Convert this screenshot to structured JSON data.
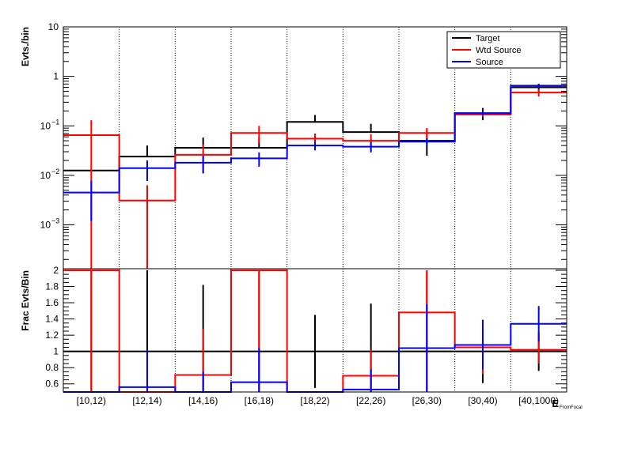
{
  "chart_data": [
    {
      "type": "histogram",
      "panel": "top",
      "ylabel": "Evts./bin",
      "yscale": "log",
      "ylim": [
        0.00013,
        10
      ],
      "categories": [
        "[10,12)",
        "[12,14)",
        "[14,16)",
        "[16,18)",
        "[18,22)",
        "[22,26)",
        "[26,30)",
        "[30,40)",
        "[40,1000)"
      ],
      "ytick_labels": [
        {
          "value": 10,
          "label": "10"
        },
        {
          "value": 1,
          "label": "1"
        },
        {
          "value": 0.1,
          "label": "10",
          "exp": "−1"
        },
        {
          "value": 0.01,
          "label": "10",
          "exp": "−2"
        },
        {
          "value": 0.001,
          "label": "10",
          "exp": "−3"
        }
      ],
      "legend": {
        "placement": "top-right"
      },
      "series": [
        {
          "name": "Target",
          "color": "#000000",
          "values": [
            0.0125,
            0.024,
            0.036,
            0.036,
            0.12,
            0.075,
            0.05,
            0.18,
            0.6
          ],
          "err_low": [
            0.0125,
            0.024,
            0.036,
            0.036,
            0.12,
            0.075,
            0.025,
            0.13,
            0.45
          ],
          "err_high": [
            0.0125,
            0.04,
            0.058,
            0.058,
            0.165,
            0.11,
            0.085,
            0.23,
            0.7
          ]
        },
        {
          "name": "Wtd Source",
          "color": "#ff0000",
          "values": [
            0.065,
            0.0031,
            0.026,
            0.072,
            0.055,
            0.05,
            0.072,
            0.17,
            0.47
          ],
          "err_low": [
            0.0,
            0.0,
            0.011,
            0.044,
            0.039,
            0.032,
            0.055,
            0.15,
            0.39
          ],
          "err_high": [
            0.13,
            0.0063,
            0.042,
            0.1,
            0.07,
            0.068,
            0.09,
            0.2,
            0.55
          ]
        },
        {
          "name": "Source",
          "color": "#0000ff",
          "values": [
            0.0045,
            0.014,
            0.018,
            0.022,
            0.04,
            0.038,
            0.048,
            0.18,
            0.65
          ],
          "err_low": [
            0.0012,
            0.0077,
            0.011,
            0.015,
            0.032,
            0.029,
            0.04,
            0.16,
            0.59
          ],
          "err_high": [
            0.0078,
            0.02,
            0.025,
            0.029,
            0.048,
            0.047,
            0.056,
            0.2,
            0.71
          ]
        }
      ]
    },
    {
      "type": "histogram",
      "panel": "bottom",
      "ylabel": "Frac Evts/Bin",
      "xlabel": "E",
      "xlabel_sub": "FromFocal",
      "ylim": [
        0.5,
        2
      ],
      "yticks": [
        0.6,
        0.8,
        1,
        1.2,
        1.4,
        1.6,
        1.8,
        2
      ],
      "ytick_labels": [
        "0.6",
        "0.8",
        "1",
        "1.2",
        "1.4",
        "1.6",
        "1.8",
        "2"
      ],
      "categories": [
        "[10,12)",
        "[12,14)",
        "[14,16)",
        "[16,18)",
        "[18,22)",
        "[22,26)",
        "[26,30)",
        "[30,40)",
        "[40,1000)"
      ],
      "series": [
        {
          "name": "Target",
          "color": "#000000",
          "values": [
            1,
            1,
            1,
            1,
            1,
            1,
            1,
            1,
            1
          ],
          "err_low": [
            0.5,
            0.5,
            0.5,
            0.5,
            0.55,
            0.5,
            0.5,
            0.61,
            0.76
          ],
          "err_high": [
            2,
            2,
            1.82,
            2,
            1.45,
            1.59,
            2,
            1.39,
            1.24
          ]
        },
        {
          "name": "Wtd Source",
          "color": "#ff0000",
          "values": [
            2,
            0.5,
            0.71,
            2,
            0.5,
            0.7,
            1.48,
            1.05,
            1.02
          ],
          "err_low": [
            0.5,
            0.5,
            0.5,
            0.5,
            0.5,
            0.5,
            0.5,
            0.72,
            0.85
          ],
          "err_high": [
            2,
            0.5,
            1.28,
            2,
            0.5,
            1.02,
            2,
            1.38,
            1.2
          ]
        },
        {
          "name": "Source",
          "color": "#0000ff",
          "values": [
            0.5,
            0.56,
            0.5,
            0.62,
            0.5,
            0.53,
            1.04,
            1.08,
            1.34
          ],
          "err_low": [
            0.5,
            0.5,
            0.5,
            0.5,
            0.5,
            0.5,
            0.5,
            0.78,
            1.12
          ],
          "err_high": [
            0.5,
            1.02,
            0.75,
            1.04,
            0.5,
            0.78,
            1.58,
            1.38,
            1.56
          ]
        }
      ]
    }
  ]
}
